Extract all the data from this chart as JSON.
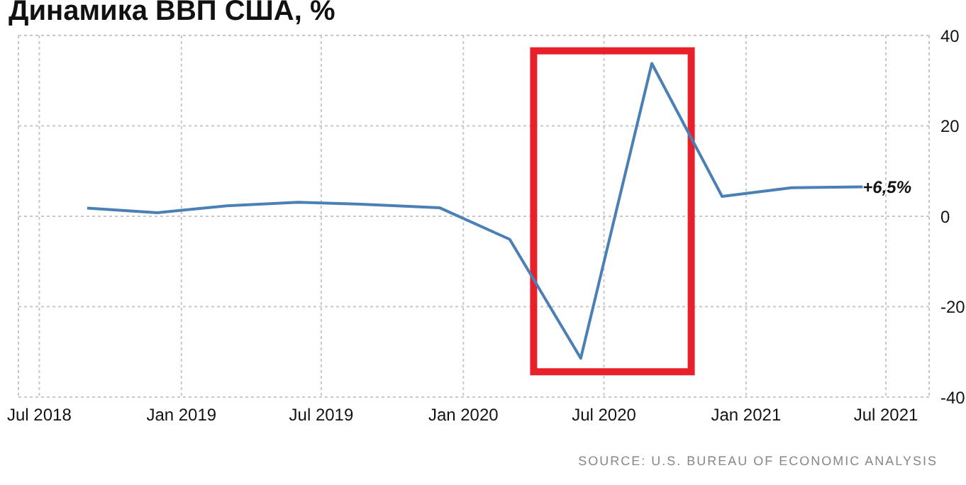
{
  "chart_data": {
    "type": "line",
    "title": "Динамика ВВП США, %",
    "x": [
      "2018-09",
      "2018-12",
      "2019-03",
      "2019-06",
      "2019-09",
      "2019-12",
      "2020-03",
      "2020-06",
      "2020-09",
      "2020-12",
      "2021-03",
      "2021-06"
    ],
    "series": [
      {
        "color": "#4a80b6",
        "values": [
          1.8,
          0.8,
          2.3,
          3.1,
          2.6,
          1.9,
          -5.1,
          -31.4,
          33.8,
          4.4,
          6.3,
          6.5
        ]
      }
    ],
    "xlim": [
      "2018-06-04",
      "2021-08-26"
    ],
    "xticks": [
      {
        "value": "2018-07",
        "label": "Jul 2018"
      },
      {
        "value": "2019-01",
        "label": "Jan 2019"
      },
      {
        "value": "2019-07",
        "label": "Jul 2019"
      },
      {
        "value": "2020-01",
        "label": "Jan 2020"
      },
      {
        "value": "2020-07",
        "label": "Jul 2020"
      },
      {
        "value": "2021-01",
        "label": "Jan 2021"
      },
      {
        "value": "2021-07",
        "label": "Jul 2021"
      }
    ],
    "ylim": [
      -40,
      40
    ],
    "yticks": [
      -40,
      -20,
      0,
      20,
      40
    ],
    "grid": true,
    "marker": "none",
    "line_style": "solid",
    "annotations": [
      {
        "text": "+6,5%",
        "x": "2021-06",
        "y": 6.5
      },
      "SOURCE: U.S. BUREAU OF ECONOMIC ANALYSIS"
    ]
  }
}
